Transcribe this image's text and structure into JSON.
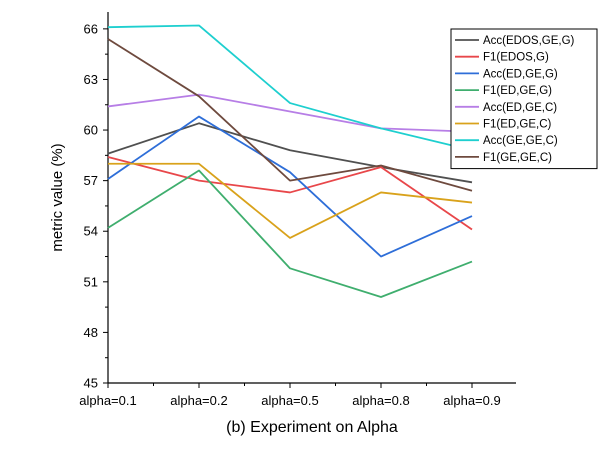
{
  "chart_data": {
    "type": "line",
    "caption": "(b) Experiment on Alpha",
    "xlabel": "",
    "ylabel": "metric value (%)",
    "categories": [
      "alpha=0.1",
      "alpha=0.2",
      "alpha=0.5",
      "alpha=0.8",
      "alpha=0.9"
    ],
    "ylim": [
      45,
      67
    ],
    "yticks": [
      45,
      48,
      51,
      54,
      57,
      60,
      63,
      66
    ],
    "grid": false,
    "legend_position": "top-right",
    "series": [
      {
        "name": "Acc(EDOS,GE,G)",
        "color": "#505050",
        "values": [
          58.6,
          60.4,
          58.8,
          57.8,
          56.9
        ]
      },
      {
        "name": "F1(EDOS,G)",
        "color": "#e8474a",
        "values": [
          58.4,
          57.0,
          56.3,
          57.8,
          54.1
        ]
      },
      {
        "name": "Acc(ED,GE,G)",
        "color": "#2e6ed8",
        "values": [
          57.1,
          60.8,
          57.5,
          52.5,
          54.9
        ]
      },
      {
        "name": "F1(ED,GE,G)",
        "color": "#3fae6e",
        "values": [
          54.2,
          57.6,
          51.8,
          50.1,
          52.2
        ]
      },
      {
        "name": "Acc(ED,GE,C)",
        "color": "#b77ee6",
        "values": [
          61.4,
          62.1,
          61.1,
          60.1,
          59.9
        ]
      },
      {
        "name": "F1(ED,GE,C)",
        "color": "#d9a21b",
        "values": [
          58.0,
          58.0,
          53.6,
          56.3,
          55.7
        ]
      },
      {
        "name": "Acc(GE,GE,C)",
        "color": "#1ecfcf",
        "values": [
          66.1,
          66.2,
          61.6,
          60.1,
          58.8
        ]
      },
      {
        "name": "F1(GE,GE,C)",
        "color": "#6e4a3e",
        "values": [
          65.4,
          62.0,
          57.0,
          57.9,
          56.4
        ]
      }
    ]
  }
}
